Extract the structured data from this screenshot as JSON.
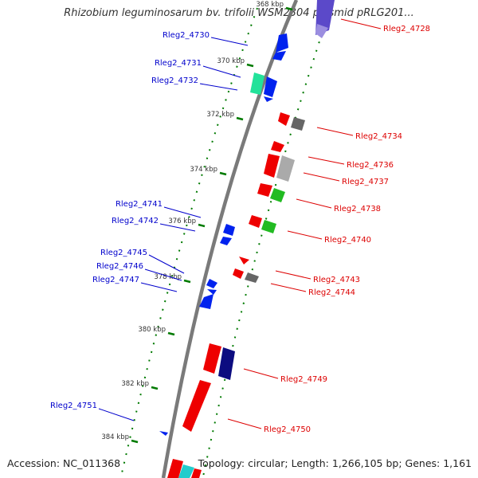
{
  "title": "Rhizobium leguminosarum bv. trifolii WSM2304 plasmid pRLG201...",
  "footer": {
    "accession": "Accession: NC_011368",
    "summary": "Topology: circular; Length: 1,266,105 bp; Genes: 1,161"
  },
  "colors": {
    "backbone": "#7a7a7a",
    "tick": "#007a00",
    "forward_label": "#0000cc",
    "reverse_label": "#dd0000"
  },
  "axis": {
    "ticks": [
      {
        "label": "368 kbp",
        "kbp": 368
      },
      {
        "label": "370 kbp",
        "kbp": 370
      },
      {
        "label": "372 kbp",
        "kbp": 372
      },
      {
        "label": "374 kbp",
        "kbp": 374
      },
      {
        "label": "376 kbp",
        "kbp": 376
      },
      {
        "label": "378 kbp",
        "kbp": 378
      },
      {
        "label": "380 kbp",
        "kbp": 380
      },
      {
        "label": "382 kbp",
        "kbp": 382
      },
      {
        "label": "384 kbp",
        "kbp": 384
      }
    ]
  },
  "gene_labels": [
    {
      "text": "Rleg2_4728",
      "strand": "reverse"
    },
    {
      "text": "Rleg2_4730",
      "strand": "forward"
    },
    {
      "text": "Rleg2_4731",
      "strand": "forward"
    },
    {
      "text": "Rleg2_4732",
      "strand": "forward"
    },
    {
      "text": "Rleg2_4734",
      "strand": "reverse"
    },
    {
      "text": "Rleg2_4736",
      "strand": "reverse"
    },
    {
      "text": "Rleg2_4737",
      "strand": "reverse"
    },
    {
      "text": "Rleg2_4738",
      "strand": "reverse"
    },
    {
      "text": "Rleg2_4740",
      "strand": "reverse"
    },
    {
      "text": "Rleg2_4741",
      "strand": "forward"
    },
    {
      "text": "Rleg2_4742",
      "strand": "forward"
    },
    {
      "text": "Rleg2_4743",
      "strand": "reverse"
    },
    {
      "text": "Rleg2_4744",
      "strand": "reverse"
    },
    {
      "text": "Rleg2_4745",
      "strand": "forward"
    },
    {
      "text": "Rleg2_4746",
      "strand": "forward"
    },
    {
      "text": "Rleg2_4747",
      "strand": "forward"
    },
    {
      "text": "Rleg2_4749",
      "strand": "reverse"
    },
    {
      "text": "Rleg2_4750",
      "strand": "reverse"
    },
    {
      "text": "Rleg2_4751",
      "strand": "forward"
    }
  ]
}
